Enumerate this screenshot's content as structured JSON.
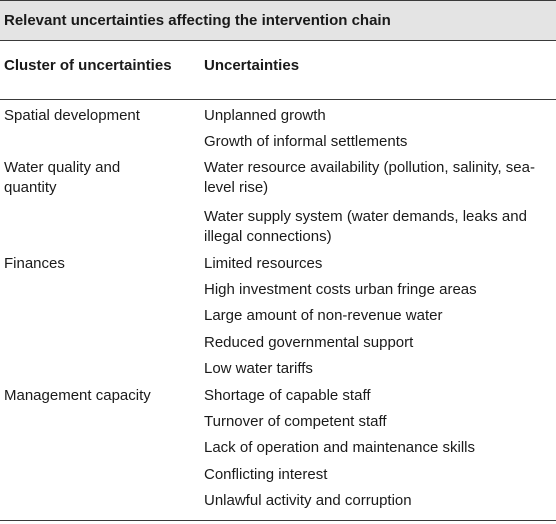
{
  "table": {
    "title": "Relevant uncertainties affecting the intervention chain",
    "headers": {
      "cluster": "Cluster of uncertainties",
      "uncertainties": "Uncertainties"
    },
    "clusters": [
      {
        "name": "Spatial development",
        "items": [
          "Unplanned growth",
          "Growth of informal settlements"
        ]
      },
      {
        "name": "Water quality and quantity",
        "items": [
          "Water resource availability (pollution, salinity, sea-level rise)",
          "Water supply system (water demands, leaks and illegal connections)"
        ]
      },
      {
        "name": "Finances",
        "items": [
          "Limited resources",
          "High investment costs urban fringe areas",
          "Large amount of non-revenue water",
          "Reduced governmental support",
          "Low water tariffs"
        ]
      },
      {
        "name": "Management capacity",
        "items": [
          "Shortage of capable staff",
          "Turnover of competent staff",
          "Lack of operation and maintenance skills",
          "Conflicting interest",
          "Unlawful activity and corruption"
        ]
      }
    ]
  }
}
